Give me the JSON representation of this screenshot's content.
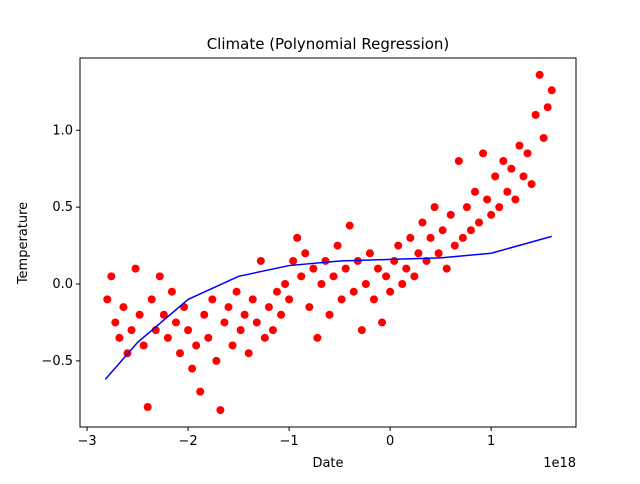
{
  "chart_data": {
    "type": "scatter",
    "title": "Climate (Polynomial Regression)",
    "x_label": "Date",
    "y_label": "Temperature",
    "x_offset_label": "1e18",
    "xlim": [
      -3.07,
      1.84
    ],
    "ylim": [
      -0.93,
      1.47
    ],
    "xticks": [
      {
        "value": -3,
        "label": "−3"
      },
      {
        "value": -2,
        "label": "−2"
      },
      {
        "value": -1,
        "label": "−1"
      },
      {
        "value": 0,
        "label": "0"
      },
      {
        "value": 1,
        "label": "1"
      }
    ],
    "yticks": [
      {
        "value": -0.5,
        "label": "−0.5"
      },
      {
        "value": 0,
        "label": "0.0"
      },
      {
        "value": 0.5,
        "label": "0.5"
      },
      {
        "value": 1,
        "label": "1.0"
      }
    ],
    "series": [
      {
        "type": "scatter",
        "color": "#ff0000",
        "x": [
          -2.8,
          -2.76,
          -2.72,
          -2.68,
          -2.64,
          -2.6,
          -2.56,
          -2.52,
          -2.48,
          -2.44,
          -2.4,
          -2.36,
          -2.32,
          -2.28,
          -2.24,
          -2.2,
          -2.16,
          -2.12,
          -2.08,
          -2.04,
          -2.0,
          -1.96,
          -1.92,
          -1.88,
          -1.84,
          -1.8,
          -1.76,
          -1.72,
          -1.68,
          -1.64,
          -1.6,
          -1.56,
          -1.52,
          -1.48,
          -1.44,
          -1.4,
          -1.36,
          -1.32,
          -1.28,
          -1.24,
          -1.2,
          -1.16,
          -1.12,
          -1.08,
          -1.04,
          -1.0,
          -0.96,
          -0.92,
          -0.88,
          -0.84,
          -0.8,
          -0.76,
          -0.72,
          -0.68,
          -0.64,
          -0.6,
          -0.56,
          -0.52,
          -0.48,
          -0.44,
          -0.4,
          -0.36,
          -0.32,
          -0.28,
          -0.24,
          -0.2,
          -0.16,
          -0.12,
          -0.08,
          -0.04,
          0.0,
          0.04,
          0.08,
          0.12,
          0.16,
          0.2,
          0.24,
          0.28,
          0.32,
          0.36,
          0.4,
          0.44,
          0.48,
          0.52,
          0.56,
          0.6,
          0.64,
          0.68,
          0.72,
          0.76,
          0.8,
          0.84,
          0.88,
          0.92,
          0.96,
          1.0,
          1.04,
          1.08,
          1.12,
          1.16,
          1.2,
          1.24,
          1.28,
          1.32,
          1.36,
          1.4,
          1.44,
          1.48,
          1.52,
          1.56,
          1.6
        ],
        "values": [
          -0.1,
          0.05,
          -0.25,
          -0.35,
          -0.15,
          -0.45,
          -0.3,
          0.1,
          -0.2,
          -0.4,
          -0.8,
          -0.1,
          -0.3,
          0.05,
          -0.2,
          -0.35,
          -0.05,
          -0.25,
          -0.45,
          -0.15,
          -0.3,
          -0.55,
          -0.4,
          -0.7,
          -0.2,
          -0.35,
          -0.1,
          -0.5,
          -0.82,
          -0.25,
          -0.15,
          -0.4,
          -0.05,
          -0.3,
          -0.2,
          -0.45,
          -0.1,
          -0.25,
          0.15,
          -0.35,
          -0.15,
          -0.3,
          -0.05,
          -0.2,
          0.0,
          -0.1,
          0.15,
          0.3,
          0.05,
          0.2,
          -0.15,
          0.1,
          -0.35,
          0.0,
          0.15,
          -0.2,
          0.05,
          0.25,
          -0.1,
          0.1,
          0.38,
          -0.05,
          0.15,
          -0.3,
          0.0,
          0.2,
          -0.1,
          0.1,
          -0.25,
          0.05,
          -0.05,
          0.15,
          0.25,
          0.0,
          0.1,
          0.3,
          0.05,
          0.2,
          0.4,
          0.15,
          0.3,
          0.5,
          0.2,
          0.35,
          0.1,
          0.45,
          0.25,
          0.8,
          0.3,
          0.5,
          0.35,
          0.6,
          0.4,
          0.85,
          0.55,
          0.45,
          0.7,
          0.5,
          0.8,
          0.6,
          0.75,
          0.55,
          0.9,
          0.7,
          0.85,
          0.65,
          1.1,
          1.36,
          0.95,
          1.15,
          1.26
        ]
      },
      {
        "type": "line",
        "color": "#0000ff",
        "x": [
          -2.82,
          -2.5,
          -2.0,
          -1.5,
          -1.0,
          -0.5,
          0.0,
          0.5,
          1.0,
          1.6
        ],
        "values": [
          -0.62,
          -0.38,
          -0.1,
          0.05,
          0.12,
          0.15,
          0.16,
          0.17,
          0.2,
          0.31
        ]
      }
    ]
  }
}
